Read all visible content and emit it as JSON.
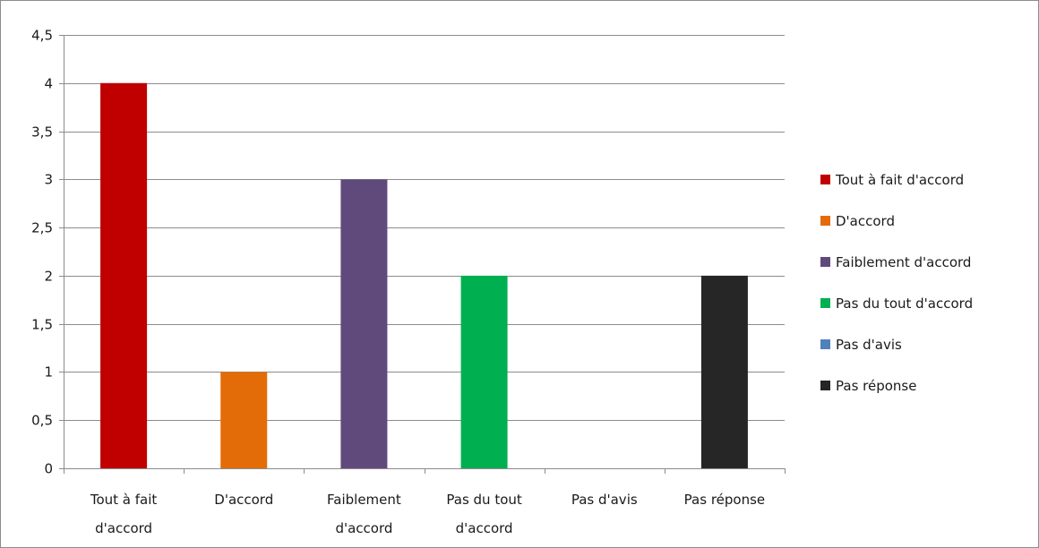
{
  "chart_data": {
    "type": "bar",
    "categories": [
      "Tout à fait d'accord",
      "D'accord",
      "Faiblement d'accord",
      "Pas du tout d'accord",
      "Pas d'avis",
      "Pas réponse"
    ],
    "category_label_lines": [
      [
        "Tout à fait",
        "d'accord"
      ],
      [
        "D'accord"
      ],
      [
        "Faiblement",
        "d'accord"
      ],
      [
        "Pas du tout",
        "d'accord"
      ],
      [
        "Pas d'avis"
      ],
      [
        "Pas réponse"
      ]
    ],
    "values": [
      4,
      1,
      3,
      2,
      0,
      2
    ],
    "colors": [
      "#c00000",
      "#e36c09",
      "#604a7b",
      "#00b050",
      "#4f81bd",
      "#262626"
    ],
    "y_ticks": [
      "0",
      "0,5",
      "1",
      "1,5",
      "2",
      "2,5",
      "3",
      "3,5",
      "4",
      "4,5"
    ],
    "ylim": [
      0,
      4.5
    ],
    "title": "",
    "xlabel": "",
    "ylabel": "",
    "grid": true,
    "legend": {
      "placement": "right",
      "entries": [
        "Tout à fait d'accord",
        "D'accord",
        "Faiblement d'accord",
        "Pas du tout d'accord",
        "Pas d'avis",
        "Pas réponse"
      ]
    }
  }
}
